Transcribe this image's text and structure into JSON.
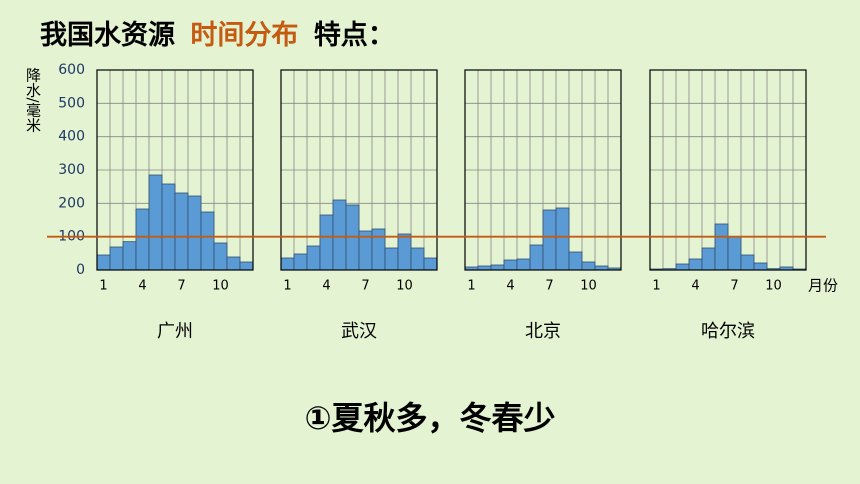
{
  "title_parts": [
    "我国水资源",
    "时间分布",
    "特点："
  ],
  "title_colors": [
    "#000000",
    "#c55a11",
    "#000000"
  ],
  "conclusion": "①夏秋多，冬春少",
  "shared_axis": {
    "ylabel": "降水/毫米",
    "xlabel": "月份",
    "ylim": [
      0,
      600
    ],
    "yticks": [
      0,
      100,
      200,
      300,
      400,
      500,
      600
    ],
    "grid": true
  },
  "reference_line": {
    "value": 100,
    "color": "#c55a11"
  },
  "chart_data": [
    {
      "type": "bar",
      "title": "广州",
      "color": "#5b9bd5",
      "categories": [
        "1",
        null,
        null,
        "4",
        null,
        null,
        "7",
        null,
        null,
        "10",
        null,
        null
      ],
      "values": [
        45,
        69,
        85,
        183,
        285,
        258,
        231,
        222,
        174,
        81,
        39,
        24
      ]
    },
    {
      "type": "bar",
      "title": "武汉",
      "color": "#5b9bd5",
      "categories": [
        "1",
        null,
        null,
        "4",
        null,
        null,
        "7",
        null,
        null,
        "10",
        null,
        null
      ],
      "values": [
        36,
        48,
        72,
        165,
        210,
        195,
        117,
        123,
        66,
        108,
        66,
        36
      ]
    },
    {
      "type": "bar",
      "title": "北京",
      "color": "#5b9bd5",
      "categories": [
        "1",
        null,
        null,
        "4",
        null,
        null,
        "7",
        null,
        null,
        "10",
        null,
        null
      ],
      "values": [
        9,
        12,
        15,
        30,
        33,
        75,
        180,
        186,
        54,
        24,
        12,
        6
      ]
    },
    {
      "type": "bar",
      "title": "哈尔滨",
      "color": "#5b9bd5",
      "categories": [
        "1",
        null,
        null,
        "4",
        null,
        null,
        "7",
        null,
        null,
        "10",
        null,
        null
      ],
      "values": [
        3,
        4,
        18,
        33,
        66,
        138,
        99,
        45,
        21,
        4,
        9,
        3
      ]
    }
  ]
}
